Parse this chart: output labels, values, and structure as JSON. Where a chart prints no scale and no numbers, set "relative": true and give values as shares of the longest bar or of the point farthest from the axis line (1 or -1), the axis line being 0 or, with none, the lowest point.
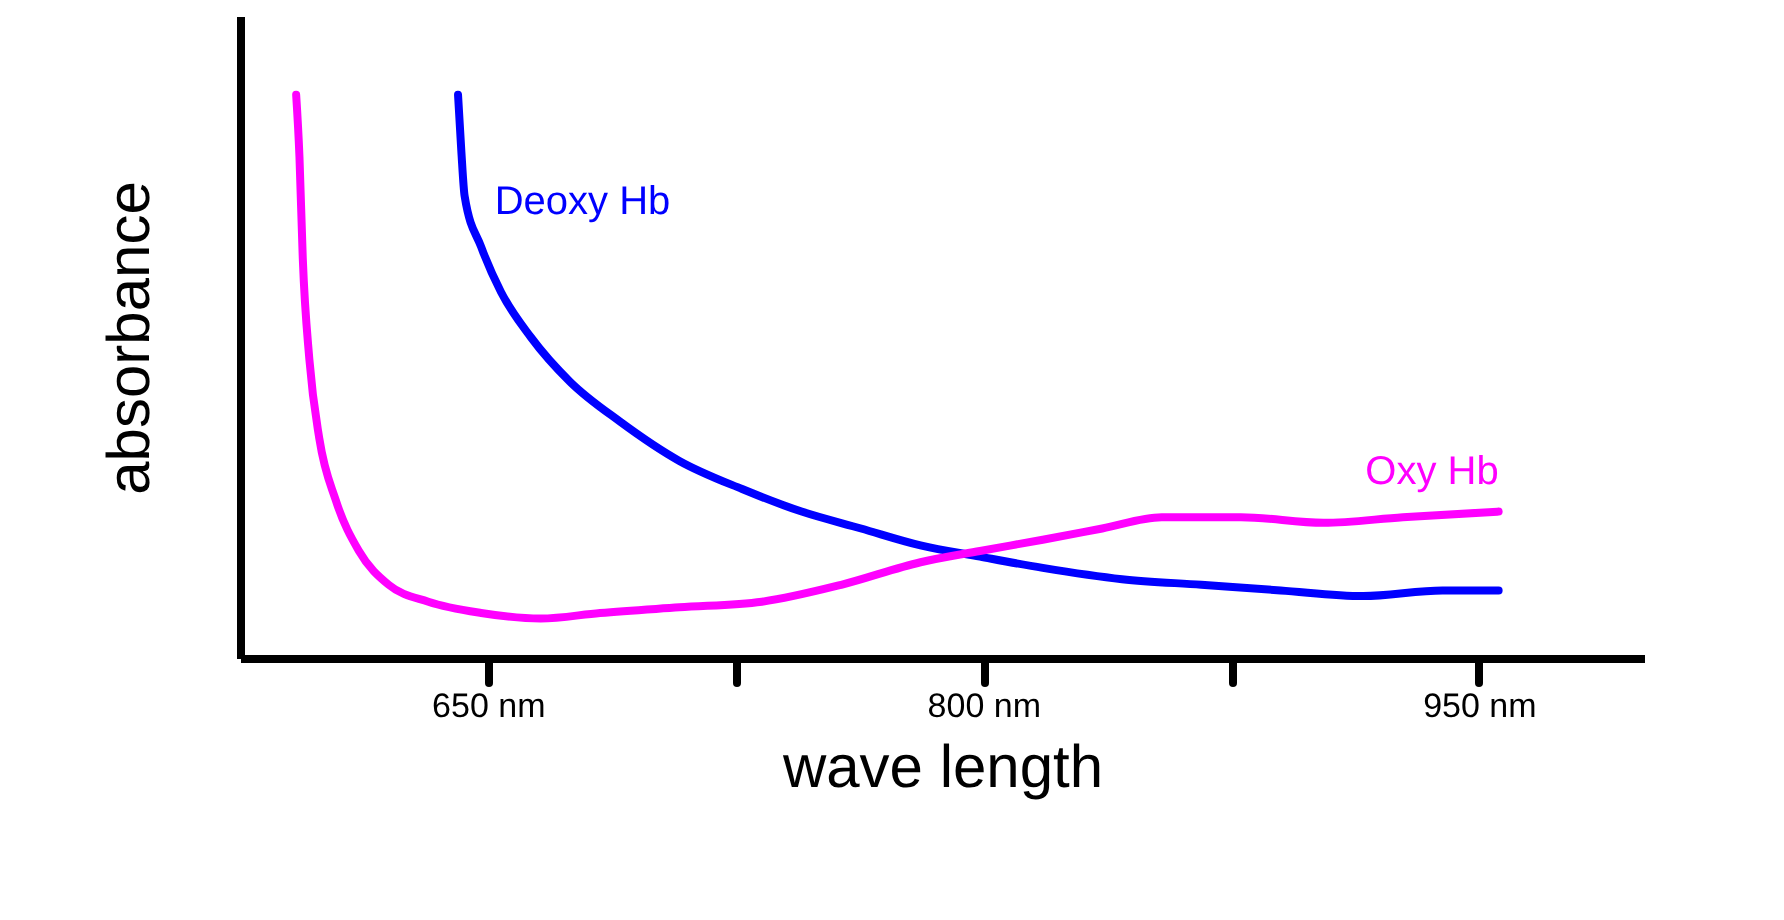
{
  "chart_data": {
    "type": "line",
    "relative": true,
    "xlabel": "wave length",
    "ylabel": "absorbance",
    "xlim": [
      575,
      1000
    ],
    "xticks": [
      {
        "value": 650,
        "label": "650 nm"
      },
      {
        "value": 725,
        "label": null
      },
      {
        "value": 800,
        "label": "800 nm"
      },
      {
        "value": 875,
        "label": null
      },
      {
        "value": 950,
        "label": "950 nm"
      }
    ],
    "grid": false,
    "marker": "none",
    "line_style": "solid",
    "series": [
      {
        "name": "Deoxy Hb",
        "color": "#0000ff",
        "x": [
          641,
          642,
          643,
          648,
          654,
          663,
          675,
          690,
          708,
          727,
          745,
          763,
          781,
          799,
          818,
          842,
          866,
          890,
          915,
          939,
          956
        ],
        "values": [
          1.0,
          0.9,
          0.82,
          0.73,
          0.65,
          0.57,
          0.49,
          0.42,
          0.35,
          0.3,
          0.26,
          0.23,
          0.2,
          0.18,
          0.16,
          0.14,
          0.13,
          0.12,
          0.11,
          0.12,
          0.12
        ]
      },
      {
        "name": "Oxy Hb",
        "color": "#ff00ff",
        "x": [
          592,
          593,
          594,
          596,
          599,
          604,
          611,
          620,
          632,
          648,
          666,
          684,
          708,
          733,
          757,
          781,
          799,
          818,
          836,
          854,
          878,
          903,
          927,
          956
        ],
        "values": [
          1.0,
          0.89,
          0.71,
          0.53,
          0.39,
          0.28,
          0.19,
          0.13,
          0.1,
          0.08,
          0.07,
          0.08,
          0.09,
          0.1,
          0.13,
          0.17,
          0.19,
          0.21,
          0.23,
          0.25,
          0.25,
          0.24,
          0.25,
          0.26
        ]
      }
    ]
  }
}
